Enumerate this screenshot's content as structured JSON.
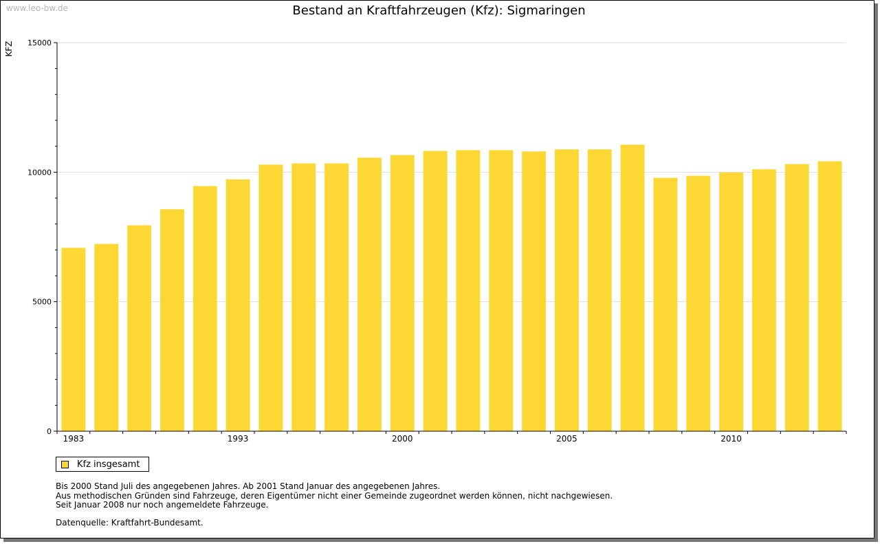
{
  "watermark": "www.leo-bw.de",
  "colors": {
    "bar": "#fdd835",
    "grid": "#dddddd",
    "axis": "#000000"
  },
  "chart_data": {
    "type": "bar",
    "title": "Bestand an Kraftfahrzeugen (Kfz): Sigmaringen",
    "ylabel": "KFZ",
    "xlabel": "",
    "ylim": [
      0,
      15000
    ],
    "yticks": [
      0,
      5000,
      10000,
      15000
    ],
    "grid": true,
    "legend_position": "bottom-left",
    "xtick_labels": [
      {
        "index": 0,
        "label": "1983"
      },
      {
        "index": 5,
        "label": "1993"
      },
      {
        "index": 10,
        "label": "2000"
      },
      {
        "index": 15,
        "label": "2005"
      },
      {
        "index": 20,
        "label": "2010"
      }
    ],
    "series": [
      {
        "name": "Kfz insgesamt",
        "values": [
          7080,
          7230,
          7950,
          8570,
          9460,
          9720,
          10290,
          10340,
          10340,
          10560,
          10660,
          10820,
          10850,
          10850,
          10800,
          10880,
          10880,
          11060,
          9780,
          9860,
          9990,
          10110,
          10310,
          10420
        ]
      }
    ]
  },
  "notes": [
    "Bis 2000 Stand Juli des angegebenen Jahres. Ab 2001 Stand Januar des angegebenen Jahres.",
    "Aus methodischen Gründen sind Fahrzeuge, deren Eigentümer nicht einer Gemeinde zugeordnet werden können, nicht nachgewiesen.",
    "Seit Januar 2008 nur noch angemeldete Fahrzeuge."
  ],
  "source": "Datenquelle: Kraftfahrt-Bundesamt."
}
